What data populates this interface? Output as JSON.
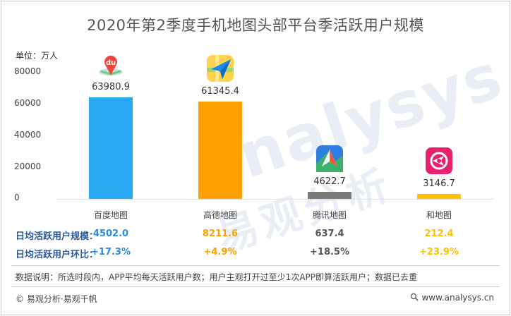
{
  "title": "2020年第2季度手机地图头部平台季活跃用户规模",
  "unit_label": "单位：万人",
  "colors": {
    "baidu": "#29aaf5",
    "gaode": "#ff9f00",
    "tencent": "#7a7a7a",
    "hedi": "#ffc000",
    "row_label": "#2a5a9c",
    "positive_growth": "#2a8ae0"
  },
  "chart_data": {
    "type": "bar",
    "title": "2020年第2季度手机地图头部平台季活跃用户规模",
    "ylabel": "单位：万人",
    "xlabel": "",
    "ylim": [
      0,
      80000
    ],
    "yticks": [
      0,
      20000,
      40000,
      60000,
      80000
    ],
    "ytick_labels": [
      "0",
      "20000",
      "40000",
      "60000",
      "80000"
    ],
    "grid": false,
    "categories": [
      "百度地图",
      "高德地图",
      "腾讯地图",
      "和地图"
    ],
    "values": [
      63980.9,
      61345.4,
      4622.7,
      3146.7
    ],
    "value_labels": [
      "63980.9",
      "61345.4",
      "4622.7",
      "3146.7"
    ],
    "icons": [
      "baidu-map-icon",
      "gaode-map-icon",
      "tencent-map-icon",
      "hedi-map-icon"
    ]
  },
  "daily_active": {
    "label": "日均活跃用户规模：",
    "values": [
      "4502.0",
      "8211.6",
      "637.4",
      "212.4"
    ],
    "colors": [
      "#2a8ae0",
      "#ff9f00",
      "#555555",
      "#ffc000"
    ]
  },
  "daily_change": {
    "label": "日均活跃用户环比：",
    "values": [
      "+17.3%",
      "+4.9%",
      "+18.5%",
      "+23.9%"
    ],
    "colors": [
      "#2a8ae0",
      "#ff9f00",
      "#555555",
      "#ffc000"
    ]
  },
  "note": "数据说明：所选时段内，APP平均每天活跃用户数；用户主观打开过至少1次APP即算活跃用户；数据已去重",
  "footer": {
    "left": "© 易观分析·易观千帆",
    "right": "www.analysys.cn"
  },
  "watermark": {
    "latin": "analysys",
    "chinese": "易观分析"
  }
}
